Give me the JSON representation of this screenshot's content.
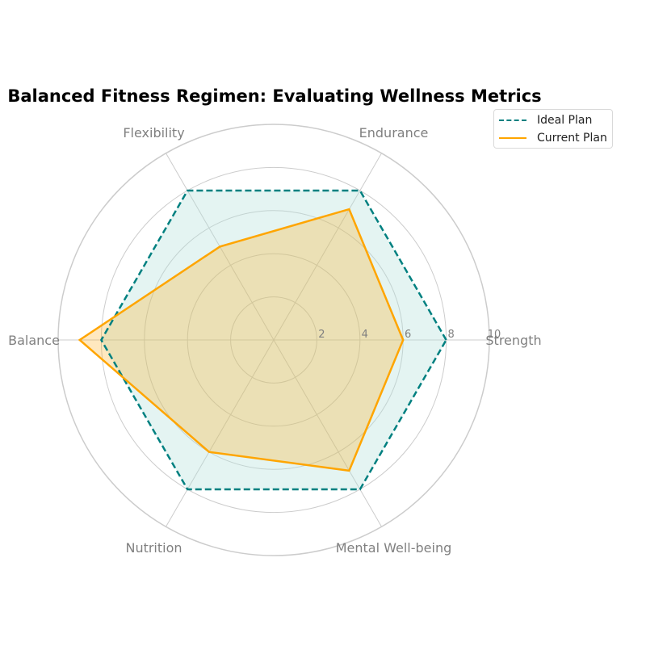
{
  "chart_data": {
    "type": "radar",
    "title": "Balanced Fitness Regimen: Evaluating Wellness Metrics",
    "categories": [
      "Strength",
      "Endurance",
      "Flexibility",
      "Balance",
      "Nutrition",
      "Mental Well-being"
    ],
    "r_ticks": [
      "2",
      "4",
      "6",
      "8",
      "10"
    ],
    "rlim": [
      0,
      10
    ],
    "grid": true,
    "legend_position": "top-right",
    "series": [
      {
        "name": "Ideal Plan",
        "values": [
          8,
          8,
          8,
          8,
          8,
          8
        ],
        "color": "#008080",
        "line_style": "dashed",
        "fill_color": "#b2dfdb"
      },
      {
        "name": "Current Plan",
        "values": [
          6,
          7,
          5,
          9,
          6,
          7
        ],
        "color": "#FFA500",
        "line_style": "solid",
        "fill_color": "#FFA500"
      }
    ]
  }
}
